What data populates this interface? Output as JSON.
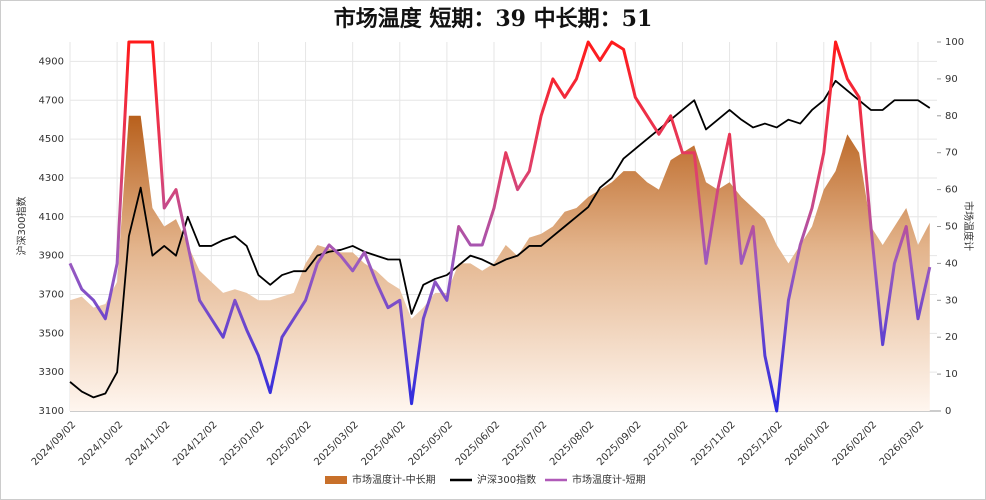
{
  "chart_data": {
    "type": "combo",
    "title": "市场温度  短期：39 中长期：51",
    "y_label": "沪深300指数",
    "y2_label": "市场温度计",
    "categories": [
      "2024/09/02",
      null,
      null,
      null,
      "2024/10/02",
      null,
      null,
      null,
      "2024/11/02",
      null,
      null,
      null,
      "2024/12/02",
      null,
      null,
      null,
      "2025/01/02",
      null,
      null,
      null,
      "2025/02/02",
      null,
      null,
      null,
      "2025/03/02",
      null,
      null,
      null,
      "2025/04/02",
      null,
      null,
      null,
      "2025/05/02",
      null,
      null,
      null,
      "2025/06/02",
      null,
      null,
      null,
      "2025/07/02",
      null,
      null,
      null,
      "2025/08/02",
      null,
      null,
      null,
      "2025/09/02",
      null,
      null,
      null,
      "2025/10/02",
      null,
      null,
      null,
      "2025/11/02",
      null,
      null,
      null,
      "2025/12/02",
      null,
      null,
      null,
      "2026/01/02",
      null,
      null,
      null,
      "2026/02/02",
      null,
      null,
      null,
      "2026/03/02",
      null
    ],
    "series": [
      {
        "name": "市场温度计-中长期",
        "type": "area",
        "axis": "y2",
        "color": "#c8702a",
        "values": [
          30,
          31,
          28,
          29,
          35,
          80,
          80,
          55,
          50,
          52,
          45,
          38,
          35,
          32,
          33,
          32,
          30,
          30,
          31,
          32,
          40,
          45,
          44,
          43,
          43,
          40,
          38,
          35,
          33,
          25,
          28,
          32,
          32,
          40,
          40,
          38,
          40,
          45,
          42,
          47,
          48,
          50,
          54,
          55,
          58,
          60,
          62,
          65,
          65,
          62,
          60,
          68,
          70,
          72,
          62,
          60,
          62,
          58,
          55,
          52,
          45,
          40,
          45,
          50,
          60,
          65,
          75,
          70,
          50,
          45,
          50,
          55,
          45,
          51
        ]
      },
      {
        "name": "沪深300指数",
        "type": "line",
        "axis": "y",
        "color": "#000000",
        "values": [
          3250,
          3200,
          3170,
          3190,
          3300,
          4000,
          4250,
          3900,
          3950,
          3900,
          4100,
          3950,
          3950,
          3980,
          4000,
          3950,
          3800,
          3750,
          3800,
          3820,
          3820,
          3900,
          3920,
          3930,
          3950,
          3920,
          3900,
          3880,
          3880,
          3600,
          3750,
          3780,
          3800,
          3850,
          3900,
          3880,
          3850,
          3880,
          3900,
          3950,
          3950,
          4000,
          4050,
          4100,
          4150,
          4250,
          4300,
          4400,
          4450,
          4500,
          4550,
          4600,
          4650,
          4700,
          4550,
          4600,
          4650,
          4600,
          4560,
          4580,
          4560,
          4600,
          4580,
          4650,
          4700,
          4800,
          4750,
          4700,
          4650,
          4650,
          4700,
          4700,
          4700,
          4660
        ]
      },
      {
        "name": "市场温度计-短期",
        "type": "line",
        "axis": "y2",
        "color": "#b05ab8",
        "values": [
          40,
          33,
          30,
          25,
          40,
          100,
          100,
          100,
          55,
          60,
          45,
          30,
          25,
          20,
          30,
          22,
          15,
          5,
          20,
          25,
          30,
          40,
          45,
          42,
          38,
          43,
          35,
          28,
          30,
          2,
          25,
          35,
          30,
          50,
          45,
          45,
          55,
          70,
          60,
          65,
          80,
          90,
          85,
          90,
          100,
          95,
          100,
          98,
          85,
          80,
          75,
          80,
          70,
          70,
          40,
          60,
          75,
          40,
          50,
          15,
          0,
          30,
          45,
          55,
          70,
          100,
          90,
          85,
          50,
          18,
          40,
          50,
          25,
          39
        ]
      }
    ],
    "ylim": [
      3100,
      5000
    ],
    "yticks": [
      3100,
      3300,
      3500,
      3700,
      3900,
      4100,
      4300,
      4500,
      4700,
      4900
    ],
    "y2lim": [
      0,
      100
    ],
    "y2ticks": [
      0,
      10,
      20,
      30,
      40,
      50,
      60,
      70,
      80,
      90,
      100
    ],
    "legend": "bottom"
  }
}
